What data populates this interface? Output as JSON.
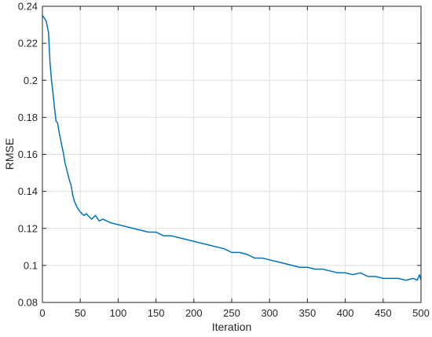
{
  "chart_data": {
    "type": "line",
    "title": "",
    "xlabel": "Iteration",
    "ylabel": "RMSE",
    "xlim": [
      0,
      500
    ],
    "ylim": [
      0.08,
      0.24
    ],
    "xticks": [
      0,
      50,
      100,
      150,
      200,
      250,
      300,
      350,
      400,
      450,
      500
    ],
    "yticks": [
      0.08,
      0.1,
      0.12,
      0.14,
      0.16,
      0.18,
      0.2,
      0.22,
      0.24
    ],
    "xtick_labels": [
      "0",
      "50",
      "100",
      "150",
      "200",
      "250",
      "300",
      "350",
      "400",
      "450",
      "500"
    ],
    "ytick_labels": [
      "0.08",
      "0.1",
      "0.12",
      "0.14",
      "0.16",
      "0.18",
      "0.2",
      "0.22",
      "0.24"
    ],
    "grid": true,
    "series": [
      {
        "color": "#0072BD",
        "x": [
          0,
          2,
          5,
          8,
          10,
          12,
          14,
          16,
          18,
          20,
          22,
          25,
          28,
          30,
          32,
          35,
          38,
          40,
          42,
          45,
          48,
          50,
          52,
          55,
          58,
          60,
          65,
          70,
          75,
          80,
          90,
          100,
          110,
          120,
          130,
          140,
          150,
          160,
          170,
          180,
          190,
          200,
          210,
          220,
          230,
          240,
          250,
          260,
          270,
          280,
          290,
          300,
          310,
          320,
          330,
          340,
          350,
          360,
          370,
          380,
          390,
          400,
          410,
          420,
          430,
          440,
          450,
          460,
          470,
          480,
          490,
          495,
          498,
          500
        ],
        "y": [
          0.235,
          0.234,
          0.232,
          0.226,
          0.21,
          0.2,
          0.193,
          0.185,
          0.178,
          0.177,
          0.172,
          0.166,
          0.16,
          0.155,
          0.152,
          0.147,
          0.143,
          0.138,
          0.135,
          0.132,
          0.13,
          0.129,
          0.128,
          0.127,
          0.128,
          0.127,
          0.125,
          0.127,
          0.124,
          0.125,
          0.123,
          0.122,
          0.121,
          0.12,
          0.119,
          0.118,
          0.118,
          0.116,
          0.116,
          0.115,
          0.114,
          0.113,
          0.112,
          0.111,
          0.11,
          0.109,
          0.107,
          0.107,
          0.106,
          0.104,
          0.104,
          0.103,
          0.102,
          0.101,
          0.1,
          0.099,
          0.099,
          0.098,
          0.098,
          0.097,
          0.096,
          0.096,
          0.095,
          0.096,
          0.094,
          0.094,
          0.093,
          0.093,
          0.093,
          0.092,
          0.093,
          0.092,
          0.095,
          0.092
        ]
      }
    ]
  }
}
